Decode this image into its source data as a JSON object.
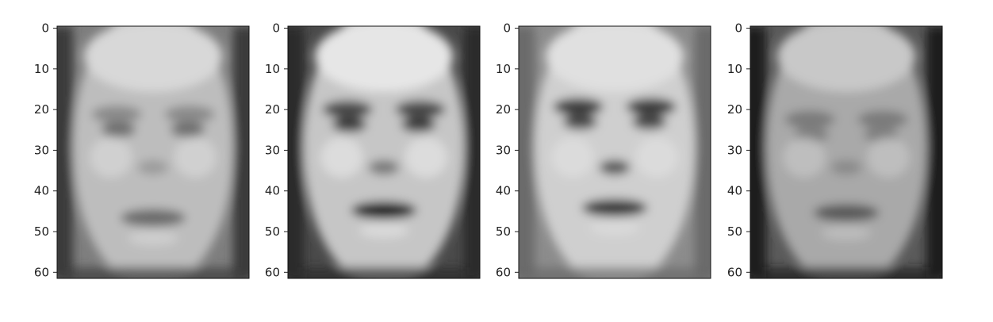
{
  "chart_data": {
    "type": "image-grid",
    "colormap": "gray",
    "image_shape": [
      62,
      47
    ],
    "panels": [
      {
        "description": "grayscale face 1",
        "ytick_labels": [
          "0",
          "10",
          "20",
          "30",
          "40",
          "50",
          "60"
        ],
        "ylim": [
          61.5,
          -0.5
        ]
      },
      {
        "description": "grayscale face 2",
        "ytick_labels": [
          "0",
          "10",
          "20",
          "30",
          "40",
          "50",
          "60"
        ],
        "ylim": [
          61.5,
          -0.5
        ]
      },
      {
        "description": "grayscale face 3",
        "ytick_labels": [
          "0",
          "10",
          "20",
          "30",
          "40",
          "50",
          "60"
        ],
        "ylim": [
          61.5,
          -0.5
        ]
      },
      {
        "description": "grayscale face 4",
        "ytick_labels": [
          "0",
          "10",
          "20",
          "30",
          "40",
          "50",
          "60"
        ],
        "ylim": [
          61.5,
          -0.5
        ]
      }
    ],
    "xticks": "hidden",
    "grid": false,
    "title": "",
    "xlabel": "",
    "ylabel": ""
  }
}
